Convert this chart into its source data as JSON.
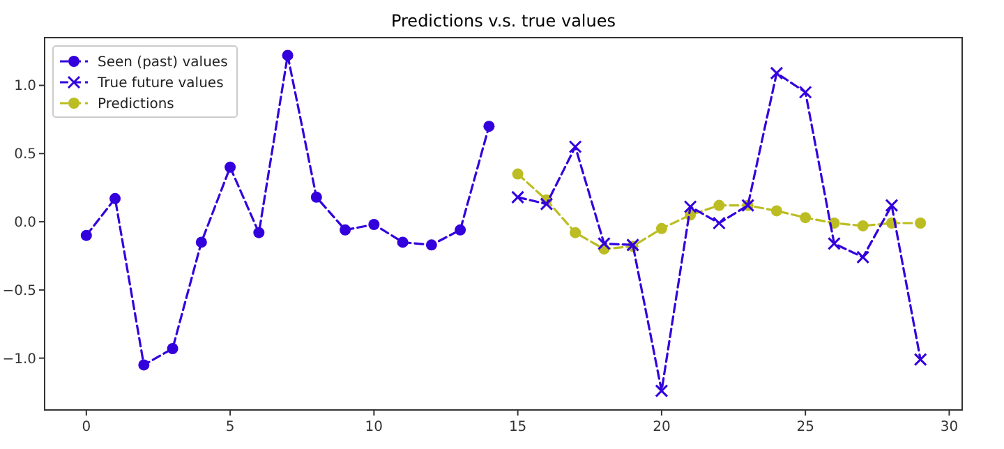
{
  "chart_data": {
    "type": "line",
    "title": "Predictions v.s. true values",
    "legend": "top left",
    "grid": false,
    "line_style": "dashed",
    "xlim": [
      -1.45,
      30.45
    ],
    "xticks": [
      0,
      5,
      10,
      15,
      20,
      25,
      30
    ],
    "ylim": [
      -1.38,
      1.35
    ],
    "yticks": [
      {
        "value": -1,
        "label": "−1.0"
      },
      {
        "value": -0.5,
        "label": "−0.5"
      },
      {
        "value": 0,
        "label": "0.0"
      },
      {
        "value": 0.5,
        "label": "0.5"
      },
      {
        "value": 1,
        "label": "1.0"
      }
    ],
    "series": [
      {
        "name": "Seen (past) values",
        "color": "#3300dd",
        "marker": "circle",
        "x": [
          0,
          1,
          2,
          3,
          4,
          5,
          6,
          7,
          8,
          9,
          10,
          11,
          12,
          13,
          14
        ],
        "values": [
          -0.1,
          0.17,
          -1.05,
          -0.93,
          -0.15,
          0.4,
          -0.08,
          1.22,
          0.18,
          -0.06,
          -0.02,
          -0.15,
          -0.17,
          -0.06,
          0.7
        ]
      },
      {
        "name": "True future values",
        "color": "#3300dd",
        "marker": "cross",
        "x": [
          15,
          16,
          17,
          18,
          19,
          20,
          21,
          22,
          23,
          24,
          25,
          26,
          27,
          28,
          29
        ],
        "values": [
          0.18,
          0.13,
          0.55,
          -0.16,
          -0.17,
          -1.24,
          0.11,
          -0.01,
          0.12,
          1.09,
          0.95,
          -0.16,
          -0.26,
          0.12,
          -1.01
        ]
      },
      {
        "name": "Predictions",
        "color": "#bcbd22",
        "marker": "circle",
        "x": [
          15,
          16,
          17,
          18,
          19,
          20,
          21,
          22,
          23,
          24,
          25,
          26,
          27,
          28,
          29
        ],
        "values": [
          0.35,
          0.16,
          -0.08,
          -0.2,
          -0.18,
          -0.05,
          0.05,
          0.12,
          0.12,
          0.08,
          0.03,
          -0.01,
          -0.03,
          -0.01,
          -0.01
        ]
      }
    ]
  }
}
